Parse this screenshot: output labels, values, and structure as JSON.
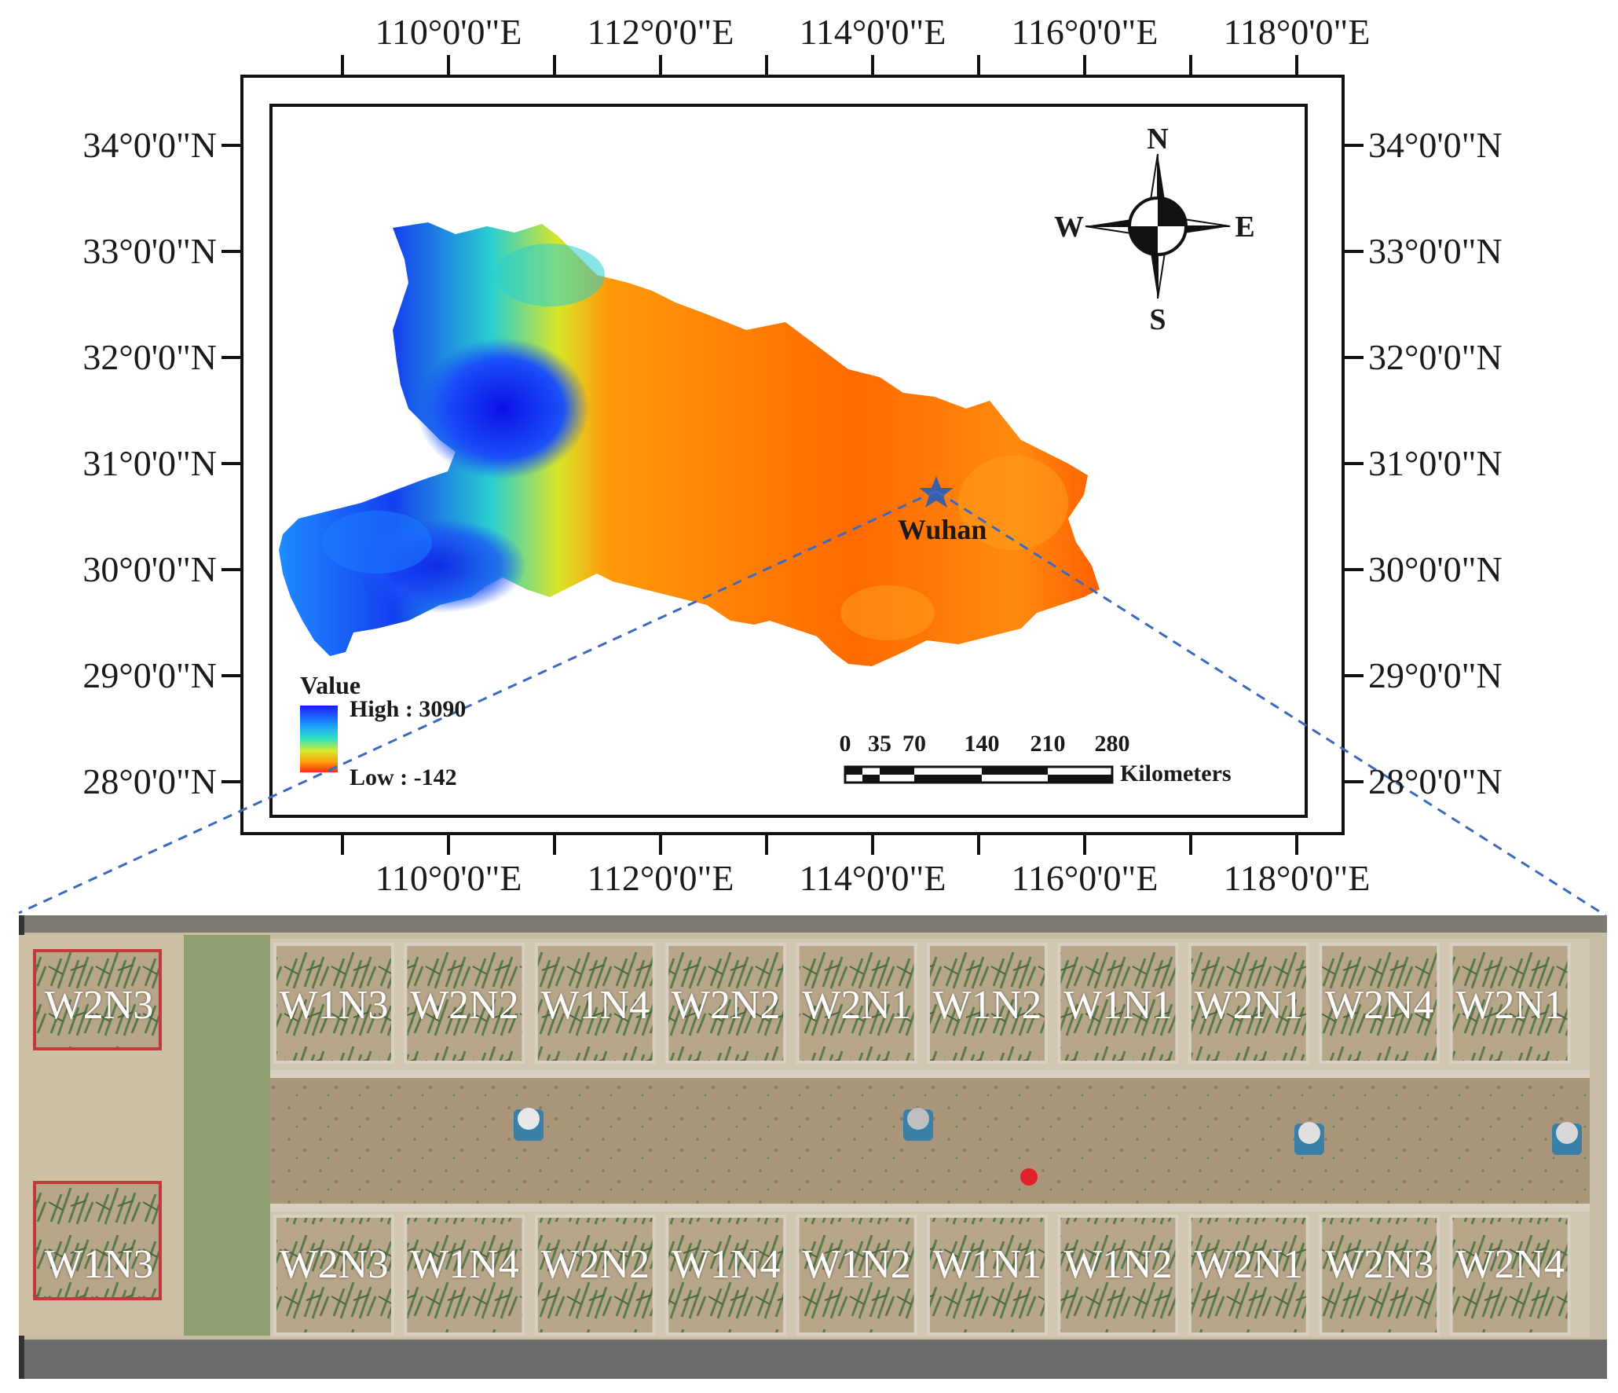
{
  "map": {
    "longitude_labels": [
      "110°0'0\"E",
      "112°0'0\"E",
      "114°0'0\"E",
      "116°0'0\"E",
      "118°0'0\"E"
    ],
    "latitude_labels": [
      "34°0'0\"N",
      "33°0'0\"N",
      "32°0'0\"N",
      "31°0'0\"N",
      "30°0'0\"N",
      "29°0'0\"N",
      "28°0'0\"N"
    ],
    "legend": {
      "title": "Value",
      "high_label": "High : 3090",
      "low_label": "Low : -142",
      "high_color": "#1a1aff",
      "mid_color": "#2fe3c0",
      "low_color": "#ff2a1a"
    },
    "compass": {
      "north": "N",
      "south": "S",
      "east": "E",
      "west": "W"
    },
    "scale_bar": {
      "ticks": [
        "0",
        "35",
        "70",
        "140",
        "210",
        "280"
      ],
      "unit": "Kilometers"
    },
    "site_label": "Wuhan",
    "site_marker_color": "#3a5fa8",
    "dem_colors": [
      "#0a1ef0",
      "#1e90ff",
      "#28d8c8",
      "#d8e628",
      "#ff9a0a",
      "#ff5a00"
    ]
  },
  "field": {
    "top_row": [
      "W2N3",
      "W1N3",
      "W2N2",
      "W1N4",
      "W2N2",
      "W2N1",
      "W1N2",
      "W1N1",
      "W2N1",
      "W2N4",
      "W2N1"
    ],
    "bottom_row": [
      "W1N3",
      "W2N3",
      "W1N4",
      "W2N2",
      "W1N4",
      "W1N2",
      "W1N1",
      "W1N2",
      "W2N1",
      "W2N3",
      "W2N4"
    ]
  }
}
